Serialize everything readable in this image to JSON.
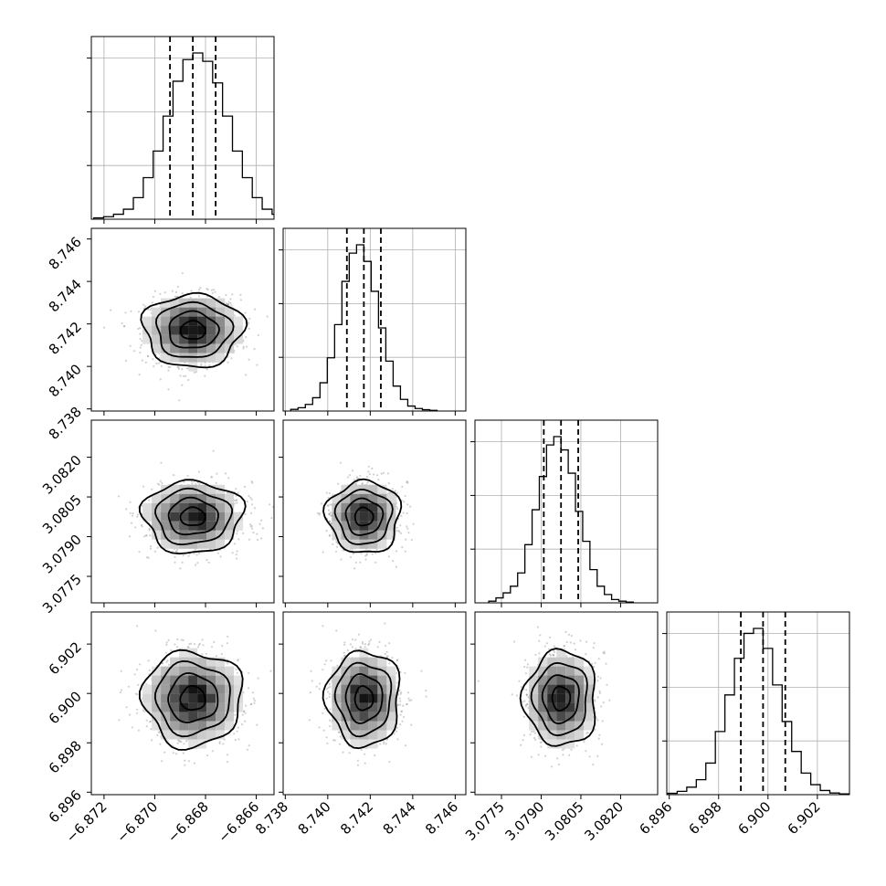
{
  "chart_data": {
    "type": "corner",
    "grid": true,
    "quantiles": [
      0.16,
      0.5,
      0.84
    ],
    "parameters": [
      {
        "index": 0,
        "range": [
          -6.8725,
          -6.8653
        ],
        "ticks": [
          -6.872,
          -6.87,
          -6.868,
          -6.866
        ],
        "tick_labels": [
          "−6.872",
          "−6.870",
          "−6.868",
          "−6.866"
        ],
        "mean": -6.8685,
        "sigma": 0.00093,
        "quantile_values": [
          -6.8694,
          -6.8685,
          -6.8676
        ],
        "histogram": [
          0.008,
          0.015,
          0.03,
          0.06,
          0.13,
          0.25,
          0.41,
          0.62,
          0.83,
          0.96,
          1.0,
          0.95,
          0.82,
          0.62,
          0.41,
          0.25,
          0.13,
          0.06,
          0.03,
          0.015
        ]
      },
      {
        "index": 1,
        "range": [
          8.7379,
          8.7465
        ],
        "ticks": [
          8.738,
          8.74,
          8.742,
          8.744,
          8.746
        ],
        "tick_labels": [
          "8.738",
          "8.740",
          "8.742",
          "8.744",
          "8.746"
        ],
        "mean": 8.7417,
        "sigma": 0.00082,
        "quantile_values": [
          8.7409,
          8.7417,
          8.7425
        ],
        "histogram": [
          0.01,
          0.02,
          0.04,
          0.08,
          0.17,
          0.32,
          0.52,
          0.78,
          0.95,
          1.0,
          0.9,
          0.72,
          0.5,
          0.3,
          0.15,
          0.07,
          0.03,
          0.015,
          0.008,
          0.004
        ]
      },
      {
        "index": 2,
        "range": [
          3.0765,
          3.0834
        ],
        "ticks": [
          3.0775,
          3.079,
          3.0805,
          3.082
        ],
        "tick_labels": [
          "3.0775",
          "3.0790",
          "3.0805",
          "3.0820"
        ],
        "mean": 3.07975,
        "sigma": 0.00065,
        "quantile_values": [
          3.0791,
          3.07975,
          3.0804
        ],
        "histogram": [
          0.01,
          0.03,
          0.06,
          0.1,
          0.18,
          0.35,
          0.56,
          0.76,
          0.95,
          1.0,
          0.92,
          0.78,
          0.55,
          0.37,
          0.2,
          0.1,
          0.05,
          0.02,
          0.01,
          0.005
        ]
      },
      {
        "index": 3,
        "range": [
          6.8959,
          6.9033
        ],
        "ticks": [
          6.896,
          6.898,
          6.9,
          6.902
        ],
        "tick_labels": [
          "6.896",
          "6.898",
          "6.900",
          "6.902"
        ],
        "mean": 6.8998,
        "sigma": 0.00092,
        "quantile_values": [
          6.8989,
          6.8998,
          6.9007
        ],
        "histogram": [
          0.008,
          0.02,
          0.045,
          0.09,
          0.19,
          0.38,
          0.6,
          0.82,
          0.97,
          1.0,
          0.88,
          0.66,
          0.44,
          0.26,
          0.13,
          0.06,
          0.025,
          0.01,
          0.005,
          0.002
        ]
      }
    ],
    "contour_levels_sigma": [
      0.5,
      1.0,
      1.5,
      2.0
    ]
  }
}
